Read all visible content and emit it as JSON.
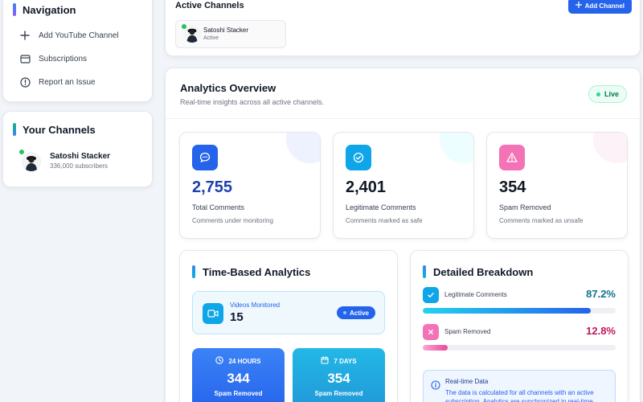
{
  "nav": {
    "title": "Navigation",
    "items": [
      {
        "label": "Add YouTube Channel",
        "icon": "plus-icon"
      },
      {
        "label": "Subscriptions",
        "icon": "card-icon"
      },
      {
        "label": "Report an Issue",
        "icon": "alert-circle-icon"
      }
    ]
  },
  "channels": {
    "title": "Your Channels",
    "items": [
      {
        "name": "Satoshi Stacker",
        "subscribers": "336,000 subscribers"
      }
    ]
  },
  "topbar": {
    "title": "Active Channels",
    "add_label": "Add Channel",
    "chip": {
      "name": "Satoshi Stacker",
      "status": "Active"
    }
  },
  "analytics": {
    "title": "Analytics Overview",
    "subtitle": "Real-time insights across all active channels.",
    "live_label": "Live",
    "stats": [
      {
        "value": "2,755",
        "label": "Total Comments",
        "sub": "Comments under monitoring",
        "color": "#1e40af",
        "icon": "chat-icon"
      },
      {
        "value": "2,401",
        "label": "Legitimate Comments",
        "sub": "Comments marked as safe",
        "color": "#111827",
        "icon": "check-circle-icon"
      },
      {
        "value": "354",
        "label": "Spam Removed",
        "sub": "Comments marked as unsafe",
        "color": "#111827",
        "icon": "warning-icon"
      }
    ]
  },
  "time_based": {
    "title": "Time-Based Analytics",
    "videos_label": "Videos Monitored",
    "videos_value": "15",
    "active_label": "Active",
    "cards": [
      {
        "period": "24 HOURS",
        "value": "344",
        "label": "Spam Removed"
      },
      {
        "period": "7 DAYS",
        "value": "354",
        "label": "Spam Removed"
      }
    ]
  },
  "breakdown": {
    "title": "Detailed Breakdown",
    "rows": [
      {
        "label": "Legitimate Comments",
        "percent": "87.2%",
        "fraction": 0.872,
        "color": "#0e7490"
      },
      {
        "label": "Spam Removed",
        "percent": "12.8%",
        "fraction": 0.128,
        "color": "#be185d"
      }
    ],
    "info_title": "Real-time Data",
    "info_text": "The data is calculated for all channels with an active subscription. Analytics are synchronized in real-time."
  }
}
